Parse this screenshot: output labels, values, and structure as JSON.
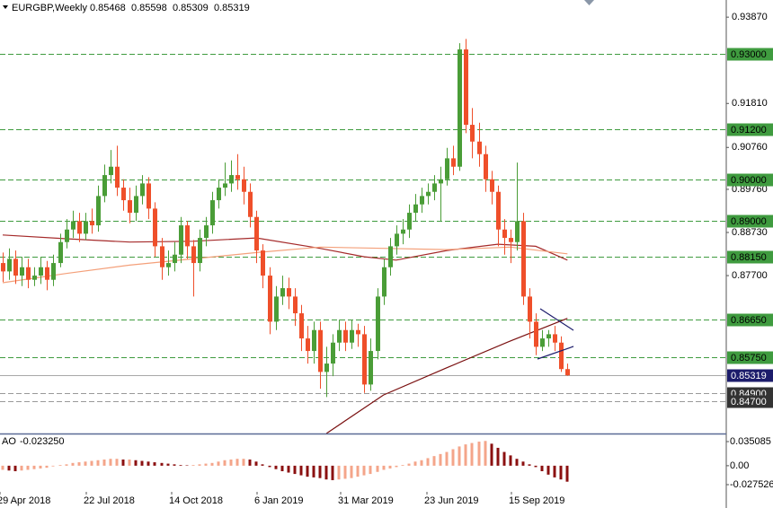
{
  "chart_data": {
    "type": "candlestick",
    "title": "EURGBP,Weekly",
    "x_labels": [
      "29 Apr 2018",
      "22 Jul 2018",
      "14 Oct 2018",
      "6 Jan 2019",
      "31 Mar 2019",
      "23 Jun 2019",
      "15 Sep 2019"
    ],
    "up_color": "#4a9d37",
    "down_color": "#ef4f2a",
    "candles": [
      [
        0.88,
        0.8825,
        0.8755,
        0.878
      ],
      [
        0.878,
        0.8835,
        0.876,
        0.881
      ],
      [
        0.881,
        0.883,
        0.875,
        0.877
      ],
      [
        0.877,
        0.8815,
        0.8745,
        0.879
      ],
      [
        0.879,
        0.881,
        0.874,
        0.876
      ],
      [
        0.876,
        0.879,
        0.8745,
        0.877
      ],
      [
        0.877,
        0.8815,
        0.875,
        0.879
      ],
      [
        0.879,
        0.8805,
        0.8735,
        0.876
      ],
      [
        0.876,
        0.882,
        0.8745,
        0.88
      ],
      [
        0.88,
        0.887,
        0.879,
        0.885
      ],
      [
        0.885,
        0.8905,
        0.8835,
        0.888
      ],
      [
        0.888,
        0.8925,
        0.886,
        0.89
      ],
      [
        0.89,
        0.892,
        0.885,
        0.887
      ],
      [
        0.887,
        0.892,
        0.8855,
        0.89
      ],
      [
        0.89,
        0.893,
        0.887,
        0.889
      ],
      [
        0.889,
        0.8985,
        0.8875,
        0.896
      ],
      [
        0.896,
        0.9035,
        0.8945,
        0.901
      ],
      [
        0.901,
        0.907,
        0.899,
        0.903
      ],
      [
        0.903,
        0.908,
        0.896,
        0.898
      ],
      [
        0.898,
        0.9,
        0.8925,
        0.895
      ],
      [
        0.895,
        0.898,
        0.8895,
        0.892
      ],
      [
        0.892,
        0.8985,
        0.89,
        0.896
      ],
      [
        0.896,
        0.901,
        0.894,
        0.899
      ],
      [
        0.899,
        0.9005,
        0.8905,
        0.893
      ],
      [
        0.893,
        0.8945,
        0.8815,
        0.884
      ],
      [
        0.884,
        0.886,
        0.876,
        0.879
      ],
      [
        0.879,
        0.883,
        0.877,
        0.88
      ],
      [
        0.88,
        0.885,
        0.878,
        0.882
      ],
      [
        0.882,
        0.891,
        0.88,
        0.889
      ],
      [
        0.889,
        0.89,
        0.881,
        0.884
      ],
      [
        0.884,
        0.8855,
        0.872,
        0.88
      ],
      [
        0.88,
        0.888,
        0.878,
        0.886
      ],
      [
        0.886,
        0.891,
        0.884,
        0.889
      ],
      [
        0.889,
        0.897,
        0.887,
        0.895
      ],
      [
        0.895,
        0.9,
        0.893,
        0.898
      ],
      [
        0.898,
        0.904,
        0.896,
        0.899
      ],
      [
        0.899,
        0.9045,
        0.897,
        0.901
      ],
      [
        0.901,
        0.906,
        0.8975,
        0.9
      ],
      [
        0.9,
        0.903,
        0.894,
        0.897
      ],
      [
        0.897,
        0.899,
        0.8885,
        0.891
      ],
      [
        0.891,
        0.8925,
        0.88,
        0.883
      ],
      [
        0.883,
        0.8845,
        0.874,
        0.877
      ],
      [
        0.877,
        0.879,
        0.863,
        0.866
      ],
      [
        0.866,
        0.8745,
        0.864,
        0.872
      ],
      [
        0.872,
        0.877,
        0.87,
        0.874
      ],
      [
        0.874,
        0.8765,
        0.869,
        0.872
      ],
      [
        0.872,
        0.874,
        0.865,
        0.868
      ],
      [
        0.868,
        0.87,
        0.859,
        0.862
      ],
      [
        0.862,
        0.865,
        0.856,
        0.859
      ],
      [
        0.859,
        0.866,
        0.856,
        0.864
      ],
      [
        0.864,
        0.866,
        0.85,
        0.854
      ],
      [
        0.854,
        0.86,
        0.848,
        0.856
      ],
      [
        0.856,
        0.863,
        0.853,
        0.861
      ],
      [
        0.861,
        0.8665,
        0.859,
        0.864
      ],
      [
        0.864,
        0.866,
        0.859,
        0.861
      ],
      [
        0.861,
        0.8665,
        0.8595,
        0.864
      ],
      [
        0.864,
        0.8655,
        0.86,
        0.863
      ],
      [
        0.863,
        0.865,
        0.849,
        0.851
      ],
      [
        0.851,
        0.862,
        0.8495,
        0.859
      ],
      [
        0.859,
        0.874,
        0.857,
        0.872
      ],
      [
        0.872,
        0.881,
        0.87,
        0.879
      ],
      [
        0.879,
        0.886,
        0.877,
        0.884
      ],
      [
        0.884,
        0.889,
        0.882,
        0.887
      ],
      [
        0.887,
        0.8905,
        0.8845,
        0.888
      ],
      [
        0.888,
        0.894,
        0.886,
        0.892
      ],
      [
        0.892,
        0.8965,
        0.89,
        0.894
      ],
      [
        0.894,
        0.898,
        0.892,
        0.896
      ],
      [
        0.896,
        0.899,
        0.894,
        0.897
      ],
      [
        0.897,
        0.901,
        0.895,
        0.899
      ],
      [
        0.899,
        0.903,
        0.89,
        0.9
      ],
      [
        0.9,
        0.9075,
        0.8985,
        0.905
      ],
      [
        0.905,
        0.908,
        0.901,
        0.903
      ],
      [
        0.903,
        0.9325,
        0.902,
        0.931
      ],
      [
        0.931,
        0.9335,
        0.911,
        0.913
      ],
      [
        0.913,
        0.917,
        0.905,
        0.909
      ],
      [
        0.909,
        0.9135,
        0.903,
        0.906
      ],
      [
        0.906,
        0.908,
        0.897,
        0.9
      ],
      [
        0.9,
        0.902,
        0.894,
        0.897
      ],
      [
        0.897,
        0.8985,
        0.884,
        0.888
      ],
      [
        0.888,
        0.8905,
        0.882,
        0.886
      ],
      [
        0.886,
        0.888,
        0.88,
        0.885
      ],
      [
        0.885,
        0.904,
        0.883,
        0.89
      ],
      [
        0.89,
        0.892,
        0.87,
        0.872
      ],
      [
        0.872,
        0.874,
        0.862,
        0.866
      ],
      [
        0.866,
        0.868,
        0.858,
        0.86
      ],
      [
        0.86,
        0.864,
        0.859,
        0.862
      ],
      [
        0.862,
        0.864,
        0.86,
        0.863
      ],
      [
        0.863,
        0.865,
        0.859,
        0.861
      ],
      [
        0.861,
        0.8625,
        0.854,
        0.85468
      ],
      [
        0.85468,
        0.85598,
        0.85309,
        0.85319
      ]
    ],
    "ylim": [
      0.8393,
      0.9428
    ],
    "yticks": [
      {
        "value": 0.9387,
        "label": "0.93870"
      },
      {
        "value": 0.9181,
        "label": "0.91810"
      },
      {
        "value": 0.9076,
        "label": "0.90760"
      },
      {
        "value": 0.8976,
        "label": "0.89760"
      },
      {
        "value": 0.8873,
        "label": "0.88730"
      },
      {
        "value": 0.877,
        "label": "0.87700"
      }
    ],
    "level_color": "#3f9b3f",
    "levels": [
      {
        "value": 0.93,
        "label": "0.93000"
      },
      {
        "value": 0.912,
        "label": "0.91200"
      },
      {
        "value": 0.9,
        "label": "0.90000"
      },
      {
        "value": 0.89,
        "label": "0.89000"
      },
      {
        "value": 0.8815,
        "label": "0.88150"
      },
      {
        "value": 0.8665,
        "label": "0.86650"
      },
      {
        "value": 0.8575,
        "label": "0.85750"
      }
    ],
    "grey_level_color": "#333333",
    "grey_levels": [
      {
        "value": 0.849,
        "label": "0.84900"
      },
      {
        "value": 0.847,
        "label": "0.84700"
      }
    ],
    "current_color": "#1c1c6b",
    "moving_averages": [
      {
        "color": "#a52a2a",
        "x": [
          0,
          10,
          20,
          30,
          40,
          50,
          57,
          62,
          70,
          78,
          84,
          89
        ],
        "values": [
          0.8867,
          0.8858,
          0.885,
          0.8852,
          0.886,
          0.8835,
          0.8815,
          0.8807,
          0.883,
          0.8845,
          0.884,
          0.8807
        ]
      },
      {
        "color": "#f4a07a",
        "x": [
          0,
          10,
          20,
          30,
          40,
          50,
          60,
          70,
          80,
          89
        ],
        "values": [
          0.8753,
          0.8775,
          0.8795,
          0.881,
          0.8825,
          0.8838,
          0.8835,
          0.8832,
          0.8838,
          0.8822
        ]
      },
      {
        "color": "#7a1010",
        "x": [
          51,
          60,
          70,
          80,
          89
        ],
        "values": [
          0.8393,
          0.8485,
          0.855,
          0.8614,
          0.8668
        ]
      }
    ],
    "indicator": {
      "name": "AO",
      "last_label": "-0.023250",
      "up_color": "#f4a58a",
      "down_color": "#8b1010",
      "ylim": [
        -0.038,
        0.0416
      ],
      "yticks": [
        0.035085,
        {
          "value": 0,
          "label": "0.00"
        },
        -0.027526
      ],
      "values": [
        -0.006,
        -0.007,
        -0.008,
        -0.007,
        -0.006,
        -0.005,
        -0.004,
        -0.003,
        -0.001,
        0.001,
        0.002,
        0.004,
        0.005,
        0.006,
        0.007,
        0.008,
        0.009,
        0.01,
        0.01,
        0.009,
        0.009,
        0.008,
        0.007,
        0.006,
        0.005,
        0.004,
        0.003,
        0.002,
        0.001,
        0.0005,
        0.001,
        0.002,
        0.003,
        0.004,
        0.006,
        0.008,
        0.009,
        0.01,
        0.01,
        0.009,
        0.006,
        0.002,
        -0.002,
        -0.005,
        -0.008,
        -0.01,
        -0.012,
        -0.014,
        -0.016,
        -0.017,
        -0.018,
        -0.02,
        -0.021,
        -0.02,
        -0.019,
        -0.018,
        -0.016,
        -0.014,
        -0.012,
        -0.009,
        -0.006,
        -0.004,
        -0.002,
        0.001,
        0.003,
        0.006,
        0.008,
        0.011,
        0.014,
        0.017,
        0.02,
        0.024,
        0.028,
        0.031,
        0.033,
        0.035,
        0.036,
        0.032,
        0.026,
        0.02,
        0.015,
        0.01,
        0.006,
        0.002,
        -0.002,
        -0.008,
        -0.013,
        -0.017,
        -0.02,
        -0.02325
      ]
    }
  }
}
